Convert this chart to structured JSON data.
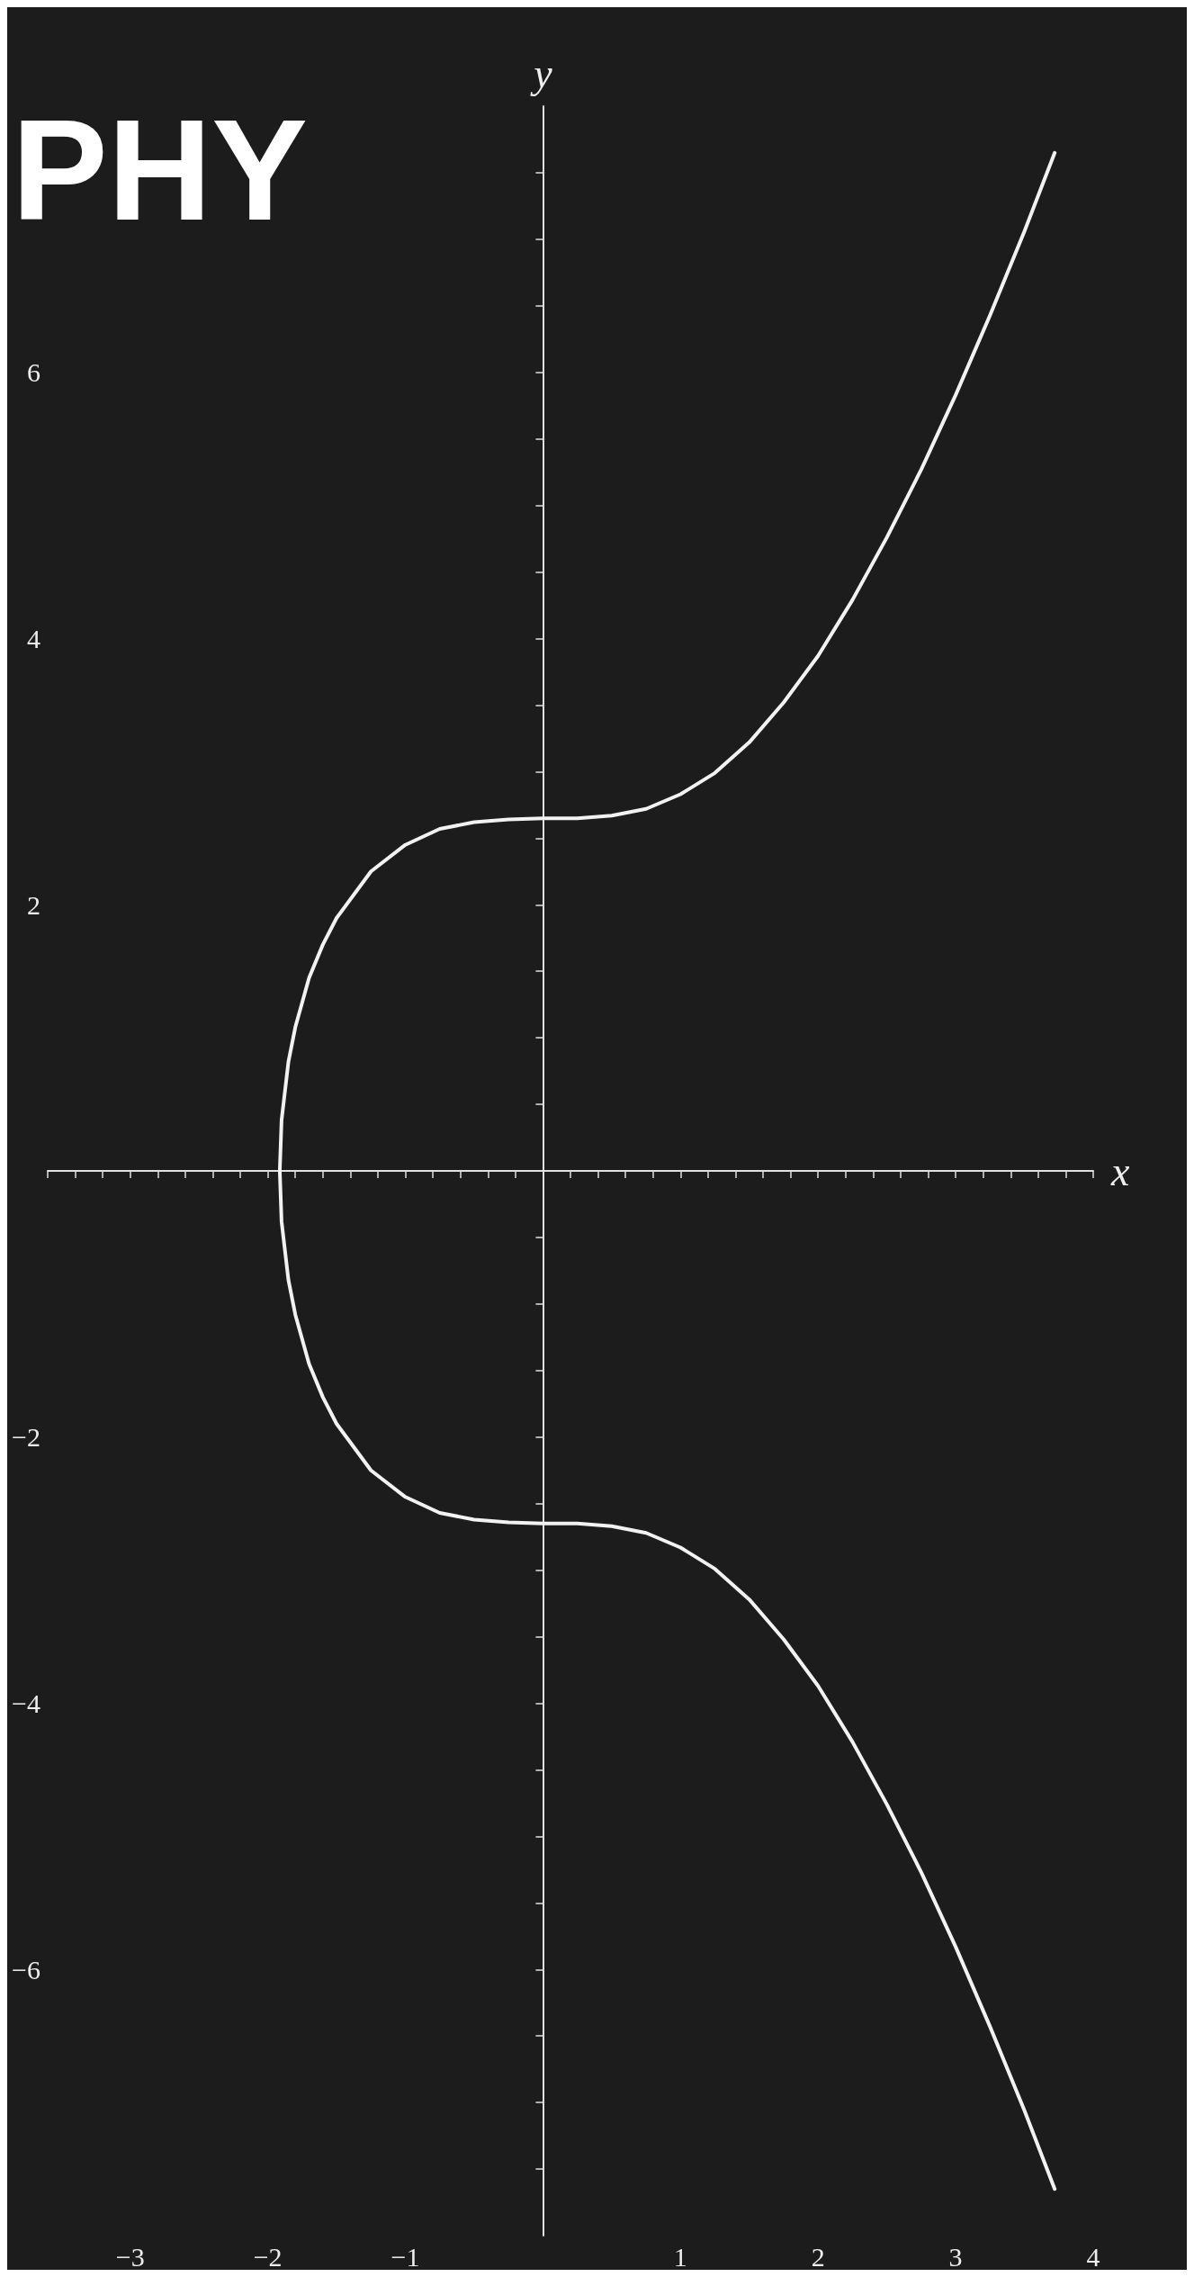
{
  "chart_data": {
    "type": "line",
    "title": "PHY",
    "xlabel": "x",
    "ylabel": "y",
    "xlim": [
      -3.6,
      4
    ],
    "ylim": [
      -8,
      8
    ],
    "xticks": [
      {
        "value": -3,
        "label": "−3"
      },
      {
        "value": -2,
        "label": "−2"
      },
      {
        "value": -1,
        "label": "−1"
      },
      1,
      2,
      3,
      4,
      {
        "value": -3.6,
        "label": null
      },
      {
        "value": -3.4,
        "label": null
      },
      {
        "value": -3.2,
        "label": null
      },
      {
        "value": -2.8,
        "label": null
      },
      {
        "value": -2.6,
        "label": null
      },
      {
        "value": -2.4,
        "label": null
      },
      {
        "value": -2.2,
        "label": null
      },
      {
        "value": -1.8,
        "label": null
      },
      {
        "value": -1.6,
        "label": null
      },
      {
        "value": -1.4,
        "label": null
      },
      {
        "value": -1.2,
        "label": null
      },
      {
        "value": -0.8,
        "label": null
      },
      {
        "value": -0.6,
        "label": null
      },
      {
        "value": -0.4,
        "label": null
      },
      {
        "value": -0.2,
        "label": null
      },
      {
        "value": 0.2,
        "label": null
      },
      {
        "value": 0.4,
        "label": null
      },
      {
        "value": 0.6,
        "label": null
      },
      {
        "value": 0.8,
        "label": null
      },
      {
        "value": 1.2,
        "label": null
      },
      {
        "value": 1.4,
        "label": null
      },
      {
        "value": 1.6,
        "label": null
      },
      {
        "value": 1.8,
        "label": null
      },
      {
        "value": 2.2,
        "label": null
      },
      {
        "value": 2.4,
        "label": null
      },
      {
        "value": 2.6,
        "label": null
      },
      {
        "value": 2.8,
        "label": null
      },
      {
        "value": 3.2,
        "label": null
      },
      {
        "value": 3.4,
        "label": null
      },
      {
        "value": 3.6,
        "label": null
      },
      {
        "value": 3.8,
        "label": null
      }
    ],
    "yticks": [
      {
        "value": -6,
        "label": "−6"
      },
      {
        "value": -4,
        "label": "−4"
      },
      {
        "value": -2,
        "label": "−2"
      },
      2,
      4,
      6,
      {
        "value": -7.5,
        "label": null
      },
      {
        "value": -7,
        "label": null
      },
      {
        "value": -6.5,
        "label": null
      },
      {
        "value": -5.5,
        "label": null
      },
      {
        "value": -5,
        "label": null
      },
      {
        "value": -4.5,
        "label": null
      },
      {
        "value": -3.5,
        "label": null
      },
      {
        "value": -3,
        "label": null
      },
      {
        "value": -2.5,
        "label": null
      },
      {
        "value": -1.5,
        "label": null
      },
      {
        "value": -1,
        "label": null
      },
      {
        "value": -0.5,
        "label": null
      },
      {
        "value": 0.5,
        "label": null
      },
      {
        "value": 1,
        "label": null
      },
      {
        "value": 1.5,
        "label": null
      },
      {
        "value": 2.5,
        "label": null
      },
      {
        "value": 3,
        "label": null
      },
      {
        "value": 3.5,
        "label": null
      },
      {
        "value": 4.5,
        "label": null
      },
      {
        "value": 5,
        "label": null
      },
      {
        "value": 5.5,
        "label": null
      },
      {
        "value": 6.5,
        "label": null
      },
      {
        "value": 7,
        "label": null
      },
      {
        "value": 7.5,
        "label": null
      }
    ],
    "grid": false,
    "marker": "none",
    "line_style": "solid",
    "series": [
      {
        "color": "#f2f2f2",
        "x": [
          3.72,
          3.5,
          3.25,
          3,
          2.75,
          2.5,
          2.25,
          2,
          1.75,
          1.5,
          1.25,
          1,
          0.75,
          0.5,
          0.25,
          0,
          -0.25,
          -0.5,
          -0.75,
          -1,
          -1.25,
          -1.5,
          -1.6,
          -1.7,
          -1.8,
          -1.85,
          -1.9,
          -1.913,
          -1.9,
          -1.85,
          -1.8,
          -1.7,
          -1.6,
          -1.5,
          -1.25,
          -1,
          -0.75,
          -0.5,
          -0.25,
          0,
          0.25,
          0.5,
          0.75,
          1,
          1.25,
          1.5,
          1.75,
          2,
          2.25,
          2.5,
          2.75,
          3,
          3.25,
          3.5,
          3.72
        ],
        "values": [
          7.65,
          7.06,
          6.43,
          5.83,
          5.27,
          4.76,
          4.29,
          3.87,
          3.52,
          3.22,
          2.99,
          2.83,
          2.72,
          2.67,
          2.65,
          2.65,
          2.64,
          2.62,
          2.57,
          2.45,
          2.25,
          1.9,
          1.7,
          1.45,
          1.08,
          0.82,
          0.38,
          0,
          -0.38,
          -0.82,
          -1.08,
          -1.45,
          -1.7,
          -1.9,
          -2.25,
          -2.45,
          -2.57,
          -2.62,
          -2.64,
          -2.65,
          -2.65,
          -2.67,
          -2.72,
          -2.83,
          -2.99,
          -3.22,
          -3.52,
          -3.87,
          -4.29,
          -4.76,
          -5.27,
          -5.83,
          -6.43,
          -7.06,
          -7.65
        ]
      }
    ]
  }
}
